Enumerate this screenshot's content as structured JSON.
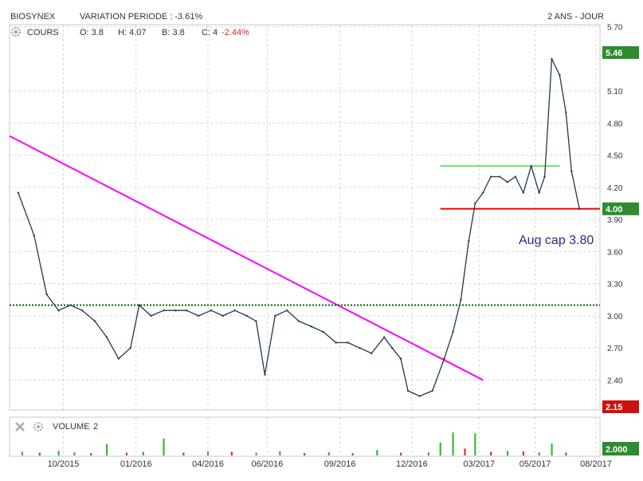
{
  "header": {
    "ticker": "BIOSYNEX",
    "variation_label": "VARIATION PERIODE : -3.61%",
    "period_label": "2 ANS - JOUR"
  },
  "legend": {
    "series_label": "COURS",
    "open_label": "O: 3.8",
    "high_label": "H: 4.07",
    "low_label": "B: 3.8",
    "close_label": "C: 4",
    "change_label": "-2.44%"
  },
  "volume_panel": {
    "label": "VOLUME",
    "period": "2",
    "last_value": "2.000"
  },
  "annotation": {
    "text": "Aug cap 3.80"
  },
  "colors": {
    "price_line": "#1b3b4b",
    "trend_line": "#ff00ff",
    "support_line": "#ff0000",
    "range_top_line": "#44dd44",
    "dotted_level": "#006600",
    "last_price_badge": "#2e8b2e",
    "low_badge": "#cc1111",
    "volume_up": "#33bb33",
    "volume_down": "#dd3333",
    "annotation_text": "#2b2b8c"
  },
  "chart_data": {
    "type": "line",
    "x_axis": {
      "ticks": [
        "10/2015",
        "01/2016",
        "04/2016",
        "06/2016",
        "09/2016",
        "12/2016",
        "03/2017",
        "05/2017",
        "08/2017"
      ]
    },
    "y_axis": {
      "ticks": [
        "2.40",
        "2.70",
        "3.00",
        "3.30",
        "3.60",
        "3.90",
        "4.20",
        "4.50",
        "4.80",
        "5.10",
        "5.70"
      ],
      "range": [
        2.12,
        5.72
      ]
    },
    "badges": [
      {
        "label": "5.46",
        "value": 5.46,
        "kind": "high"
      },
      {
        "label": "4.00",
        "value": 4.0,
        "kind": "last"
      },
      {
        "label": "2.15",
        "value": 2.15,
        "kind": "low"
      }
    ],
    "price_series": {
      "name": "COURS",
      "dates": [
        "2015-08-05",
        "2015-08-25",
        "2015-09-10",
        "2015-09-25",
        "2015-10-10",
        "2015-10-25",
        "2015-11-10",
        "2015-11-25",
        "2015-12-10",
        "2015-12-25",
        "2016-01-05",
        "2016-01-20",
        "2016-02-05",
        "2016-02-20",
        "2016-03-05",
        "2016-03-20",
        "2016-04-05",
        "2016-04-20",
        "2016-05-05",
        "2016-05-20",
        "2016-06-01",
        "2016-06-12",
        "2016-06-25",
        "2016-07-10",
        "2016-07-25",
        "2016-08-10",
        "2016-08-25",
        "2016-09-10",
        "2016-09-25",
        "2016-10-10",
        "2016-10-25",
        "2016-11-10",
        "2016-11-20",
        "2016-12-01",
        "2016-12-10",
        "2016-12-25",
        "2017-01-10",
        "2017-01-25",
        "2017-02-05",
        "2017-02-15",
        "2017-02-25",
        "2017-03-05",
        "2017-03-15",
        "2017-03-25",
        "2017-04-05",
        "2017-04-15",
        "2017-04-25",
        "2017-05-05",
        "2017-05-15",
        "2017-05-25",
        "2017-06-01",
        "2017-06-10",
        "2017-06-20",
        "2017-06-28",
        "2017-07-05",
        "2017-07-15"
      ],
      "values": [
        4.15,
        3.75,
        3.2,
        3.05,
        3.1,
        3.05,
        2.95,
        2.8,
        2.6,
        2.7,
        3.1,
        3.0,
        3.05,
        3.05,
        3.05,
        3.0,
        3.05,
        3.0,
        3.05,
        3.0,
        2.95,
        2.45,
        3.0,
        3.05,
        2.95,
        2.9,
        2.85,
        2.75,
        2.75,
        2.7,
        2.65,
        2.8,
        2.7,
        2.6,
        2.3,
        2.25,
        2.3,
        2.6,
        2.85,
        3.15,
        3.7,
        4.05,
        4.15,
        4.3,
        4.3,
        4.25,
        4.3,
        4.15,
        4.4,
        4.15,
        4.3,
        5.4,
        5.25,
        4.9,
        4.35,
        4.0
      ]
    },
    "lines": [
      {
        "kind": "trendline",
        "from": {
          "date": "2015-07-25",
          "value": 4.68
        },
        "to": {
          "date": "2017-03-15",
          "value": 2.4
        }
      },
      {
        "kind": "support",
        "from": {
          "date": "2017-01-20",
          "value": 4.0
        },
        "to": {
          "date": "2017-08-10",
          "value": 4.0
        }
      },
      {
        "kind": "range_top",
        "from": {
          "date": "2017-01-20",
          "value": 4.4
        },
        "to": {
          "date": "2017-06-20",
          "value": 4.4
        }
      },
      {
        "kind": "dotted_level",
        "from": {
          "date": "2015-07-25",
          "value": 3.1
        },
        "to": {
          "date": "2017-08-10",
          "value": 3.1
        }
      }
    ],
    "volume": {
      "dates": [
        "2015-08-10",
        "2015-09-01",
        "2015-09-25",
        "2015-10-15",
        "2015-11-05",
        "2015-11-25",
        "2015-12-20",
        "2016-01-10",
        "2016-02-05",
        "2016-03-01",
        "2016-04-01",
        "2016-05-01",
        "2016-06-01",
        "2016-07-01",
        "2016-08-01",
        "2016-09-01",
        "2016-10-01",
        "2016-11-01",
        "2016-12-01",
        "2017-01-05",
        "2017-01-20",
        "2017-02-05",
        "2017-02-20",
        "2017-03-05",
        "2017-03-25",
        "2017-04-15",
        "2017-05-05",
        "2017-05-25",
        "2017-06-10",
        "2017-06-28"
      ],
      "values": [
        0.8,
        0.6,
        1.0,
        0.7,
        0.5,
        2.5,
        0.6,
        0.8,
        3.7,
        0.6,
        0.9,
        0.8,
        0.6,
        0.9,
        0.5,
        0.7,
        0.5,
        1.2,
        0.6,
        0.7,
        2.8,
        5.0,
        1.5,
        4.8,
        0.8,
        1.0,
        0.9,
        0.7,
        2.6,
        0.6
      ],
      "up": [
        1,
        0,
        1,
        1,
        0,
        1,
        0,
        1,
        1,
        0,
        1,
        0,
        1,
        1,
        0,
        1,
        0,
        1,
        0,
        1,
        1,
        1,
        0,
        1,
        0,
        1,
        0,
        1,
        1,
        0
      ]
    }
  }
}
